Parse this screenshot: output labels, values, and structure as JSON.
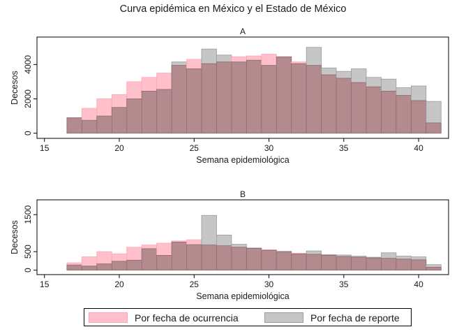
{
  "figure": {
    "title": "Curva epidémica en México y el Estado de México"
  },
  "colors": {
    "ocurrencia_fill": "#ffc0cb",
    "ocurrencia_stroke": "#ffa5b0",
    "reporte_fill": "#c6c6c6",
    "reporte_stroke": "#9a9a9a",
    "overlap_fill": "#b38a8e",
    "overlap_stroke": "#8b6a6c",
    "plot_bg": "#ffffff",
    "axis": "#000000"
  },
  "legend": {
    "items": [
      {
        "label": "Por fecha de ocurrencia",
        "color": "#ffc0cb",
        "stroke": "#ffa5b0"
      },
      {
        "label": "Por fecha de reporte",
        "color": "#c6c6c6",
        "stroke": "#9a9a9a"
      }
    ]
  },
  "chart_data": [
    {
      "type": "bar",
      "panel": "A",
      "xlabel": "Semana epidemiológica",
      "ylabel": "Decesos",
      "xlim": [
        14.5,
        42
      ],
      "ylim": [
        -300,
        5600
      ],
      "xticks": [
        "15",
        "20",
        "25",
        "30",
        "35",
        "40"
      ],
      "yticks": [
        "0",
        "2000",
        "4000"
      ],
      "x": [
        17,
        18,
        19,
        20,
        21,
        22,
        23,
        24,
        25,
        26,
        27,
        28,
        29,
        30,
        31,
        32,
        33,
        34,
        35,
        36,
        37,
        38,
        39,
        40,
        41
      ],
      "series": [
        {
          "name": "Por fecha de ocurrencia",
          "values": [
            900,
            1450,
            2000,
            2250,
            3000,
            3250,
            3500,
            3950,
            4300,
            4050,
            4150,
            4450,
            4500,
            4600,
            4450,
            4150,
            3950,
            3400,
            3200,
            2950,
            2700,
            2450,
            2200,
            1900,
            600
          ]
        },
        {
          "name": "Por fecha de reporte",
          "values": [
            900,
            750,
            1000,
            1500,
            2000,
            2450,
            2550,
            4150,
            3750,
            4900,
            4550,
            4150,
            4250,
            3950,
            4450,
            4050,
            5000,
            3800,
            3600,
            3750,
            3250,
            3150,
            2650,
            2750,
            1850
          ]
        }
      ]
    },
    {
      "type": "bar",
      "panel": "B",
      "xlabel": "Semana epidemiológica",
      "ylabel": "Decesos",
      "xlim": [
        14.5,
        42
      ],
      "ylim": [
        -120,
        1900
      ],
      "xticks": [
        "15",
        "20",
        "25",
        "30",
        "35",
        "40"
      ],
      "yticks": [
        "0",
        "500",
        "1500"
      ],
      "x": [
        17,
        18,
        19,
        20,
        21,
        22,
        23,
        24,
        25,
        26,
        27,
        28,
        29,
        30,
        31,
        32,
        33,
        34,
        35,
        36,
        37,
        38,
        39,
        40,
        41
      ],
      "series": [
        {
          "name": "Por fecha de ocurrencia",
          "values": [
            200,
            360,
            500,
            440,
            620,
            680,
            730,
            790,
            820,
            680,
            660,
            620,
            590,
            550,
            490,
            460,
            430,
            400,
            370,
            350,
            330,
            320,
            300,
            280,
            80
          ]
        },
        {
          "name": "Por fecha de reporte",
          "values": [
            140,
            110,
            170,
            240,
            270,
            580,
            400,
            760,
            690,
            1480,
            950,
            700,
            600,
            540,
            510,
            440,
            520,
            420,
            410,
            380,
            350,
            470,
            380,
            360,
            150
          ]
        }
      ]
    }
  ]
}
